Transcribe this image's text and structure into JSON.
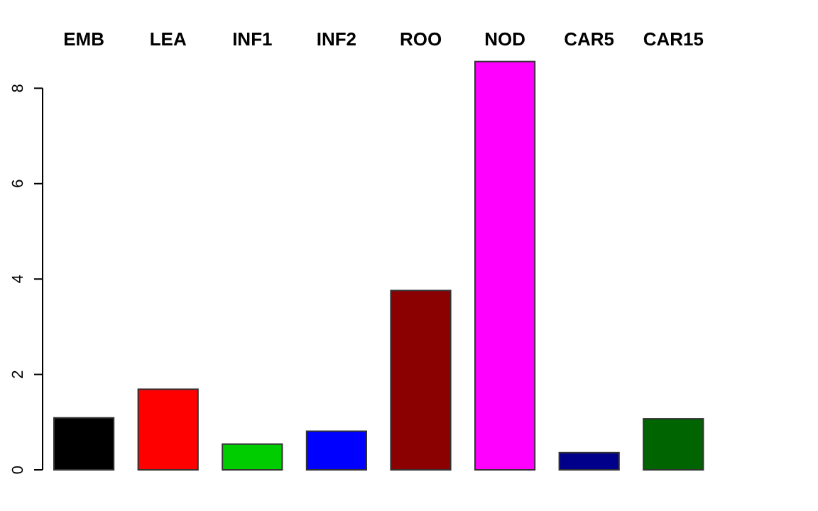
{
  "chart_data": {
    "type": "bar",
    "categories": [
      "EMB",
      "LEA",
      "INF1",
      "INF2",
      "ROO",
      "NOD",
      "CAR5",
      "CAR15"
    ],
    "values": [
      1.09,
      1.69,
      0.54,
      0.81,
      3.76,
      8.56,
      0.36,
      1.07
    ],
    "colors": [
      "#000000",
      "#ff0000",
      "#00cd00",
      "#0000ff",
      "#8b0000",
      "#ff00ff",
      "#00008b",
      "#006400"
    ],
    "ylim": [
      0,
      8.6
    ],
    "yticks": [
      0,
      2,
      4,
      6,
      8
    ],
    "grid": false
  }
}
